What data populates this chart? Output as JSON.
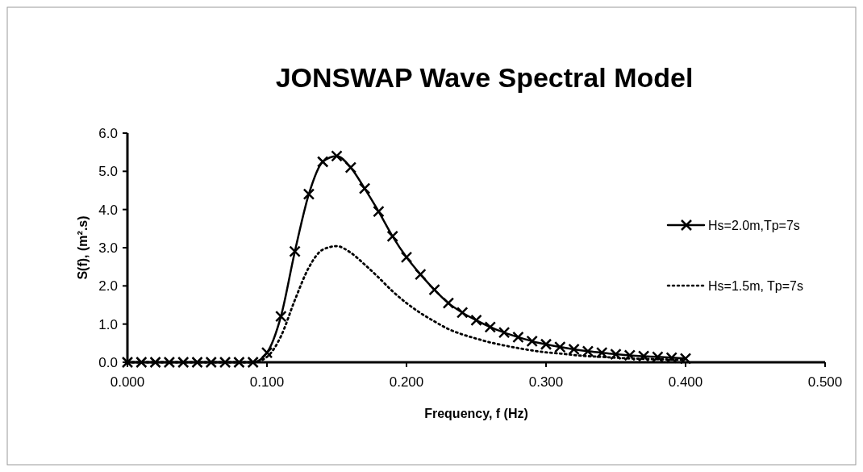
{
  "chart_data": {
    "type": "line",
    "title": "JONSWAP Wave Spectral Model",
    "xlabel": "Frequency, f (Hz)",
    "ylabel": "S(f), (m².s)",
    "x": [
      0,
      0.01,
      0.02,
      0.03,
      0.04,
      0.05,
      0.06,
      0.07,
      0.08,
      0.09,
      0.1,
      0.11,
      0.12,
      0.13,
      0.14,
      0.15,
      0.16,
      0.17,
      0.18,
      0.19,
      0.2,
      0.21,
      0.22,
      0.23,
      0.24,
      0.25,
      0.26,
      0.27,
      0.28,
      0.29,
      0.3,
      0.31,
      0.32,
      0.33,
      0.34,
      0.35,
      0.36,
      0.37,
      0.38,
      0.39,
      0.4
    ],
    "series": [
      {
        "name": "Hs=2.0m,Tp=7s",
        "color": "#000000",
        "marker": "cross",
        "line_style": "solid",
        "values": [
          0,
          0,
          0,
          0,
          0,
          0,
          0,
          0,
          0,
          0,
          0.25,
          1.2,
          2.9,
          4.4,
          5.25,
          5.4,
          5.1,
          4.55,
          3.95,
          3.3,
          2.75,
          2.3,
          1.9,
          1.55,
          1.3,
          1.1,
          0.92,
          0.78,
          0.66,
          0.55,
          0.47,
          0.4,
          0.34,
          0.29,
          0.25,
          0.21,
          0.18,
          0.16,
          0.14,
          0.12,
          0.1
        ]
      },
      {
        "name": "Hs=1.5m, Tp=7s",
        "color": "#000000",
        "marker": "none",
        "line_style": "dotted",
        "values": [
          0,
          0,
          0,
          0,
          0,
          0,
          0,
          0,
          0,
          0,
          0.14,
          0.68,
          1.63,
          2.48,
          2.95,
          3.04,
          2.87,
          2.56,
          2.22,
          1.86,
          1.55,
          1.29,
          1.07,
          0.87,
          0.73,
          0.62,
          0.52,
          0.44,
          0.37,
          0.31,
          0.26,
          0.23,
          0.19,
          0.16,
          0.14,
          0.12,
          0.1,
          0.09,
          0.08,
          0.07,
          0.06
        ]
      }
    ],
    "xlim": [
      0,
      0.5
    ],
    "xticks": [
      {
        "value": 0,
        "label": "0.000"
      },
      {
        "value": 0.1,
        "label": "0.100"
      },
      {
        "value": 0.2,
        "label": "0.200"
      },
      {
        "value": 0.3,
        "label": "0.300"
      },
      {
        "value": 0.4,
        "label": "0.400"
      },
      {
        "value": 0.5,
        "label": "0.500"
      }
    ],
    "ylim": [
      0,
      6
    ],
    "yticks": [
      {
        "value": 0,
        "label": "0.0"
      },
      {
        "value": 1,
        "label": "1.0"
      },
      {
        "value": 2,
        "label": "2.0"
      },
      {
        "value": 3,
        "label": "3.0"
      },
      {
        "value": 4,
        "label": "4.0"
      },
      {
        "value": 5,
        "label": "5.0"
      },
      {
        "value": 6,
        "label": "6.0"
      }
    ],
    "grid": false,
    "legend": "right"
  }
}
